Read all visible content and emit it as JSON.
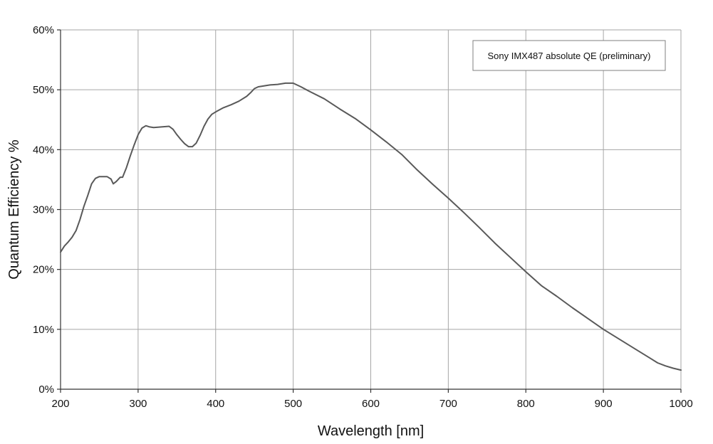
{
  "chart_data": {
    "type": "line",
    "title": "",
    "xlabel": "Wavelength [nm]",
    "ylabel": "Quantum Efficiency %",
    "xlim": [
      200,
      1000
    ],
    "ylim": [
      0,
      60
    ],
    "x_ticks": [
      200,
      300,
      400,
      500,
      600,
      700,
      800,
      900,
      1000
    ],
    "x_tick_labels": [
      "200",
      "300",
      "400",
      "500",
      "600",
      "700",
      "800",
      "900",
      "1000"
    ],
    "y_ticks": [
      0,
      10,
      20,
      30,
      40,
      50,
      60
    ],
    "y_tick_labels": [
      "0%",
      "10%",
      "20%",
      "30%",
      "40%",
      "50%",
      "60%"
    ],
    "grid": true,
    "legend": {
      "placement": "top-right",
      "boxed": true
    },
    "series": [
      {
        "name": "Sony IMX487 absolute QE (preliminary)",
        "color": "#595959",
        "points": [
          [
            200,
            22.9
          ],
          [
            205,
            23.9
          ],
          [
            210,
            24.6
          ],
          [
            215,
            25.4
          ],
          [
            220,
            26.5
          ],
          [
            225,
            28.3
          ],
          [
            230,
            30.5
          ],
          [
            235,
            32.3
          ],
          [
            240,
            34.3
          ],
          [
            245,
            35.2
          ],
          [
            250,
            35.5
          ],
          [
            255,
            35.5
          ],
          [
            260,
            35.5
          ],
          [
            265,
            35.1
          ],
          [
            268,
            34.3
          ],
          [
            272,
            34.7
          ],
          [
            277,
            35.4
          ],
          [
            280,
            35.4
          ],
          [
            285,
            37.0
          ],
          [
            290,
            39.0
          ],
          [
            295,
            40.8
          ],
          [
            300,
            42.5
          ],
          [
            305,
            43.6
          ],
          [
            310,
            44.0
          ],
          [
            315,
            43.8
          ],
          [
            320,
            43.7
          ],
          [
            330,
            43.8
          ],
          [
            340,
            43.9
          ],
          [
            345,
            43.4
          ],
          [
            350,
            42.5
          ],
          [
            355,
            41.7
          ],
          [
            360,
            41.0
          ],
          [
            365,
            40.5
          ],
          [
            370,
            40.5
          ],
          [
            375,
            41.1
          ],
          [
            380,
            42.4
          ],
          [
            385,
            43.9
          ],
          [
            390,
            45.1
          ],
          [
            395,
            45.9
          ],
          [
            400,
            46.3
          ],
          [
            410,
            47.0
          ],
          [
            420,
            47.5
          ],
          [
            430,
            48.1
          ],
          [
            440,
            48.9
          ],
          [
            445,
            49.5
          ],
          [
            450,
            50.2
          ],
          [
            455,
            50.5
          ],
          [
            460,
            50.6
          ],
          [
            470,
            50.8
          ],
          [
            480,
            50.9
          ],
          [
            490,
            51.1
          ],
          [
            500,
            51.1
          ],
          [
            510,
            50.5
          ],
          [
            520,
            49.8
          ],
          [
            540,
            48.5
          ],
          [
            560,
            46.8
          ],
          [
            580,
            45.2
          ],
          [
            600,
            43.3
          ],
          [
            620,
            41.3
          ],
          [
            640,
            39.2
          ],
          [
            660,
            36.6
          ],
          [
            680,
            34.2
          ],
          [
            700,
            31.9
          ],
          [
            720,
            29.5
          ],
          [
            740,
            27.0
          ],
          [
            760,
            24.4
          ],
          [
            780,
            22.0
          ],
          [
            800,
            19.6
          ],
          [
            820,
            17.3
          ],
          [
            840,
            15.5
          ],
          [
            860,
            13.6
          ],
          [
            880,
            11.8
          ],
          [
            900,
            10.0
          ],
          [
            920,
            8.4
          ],
          [
            940,
            6.8
          ],
          [
            960,
            5.2
          ],
          [
            970,
            4.4
          ],
          [
            980,
            3.9
          ],
          [
            990,
            3.5
          ],
          [
            1000,
            3.2
          ]
        ]
      }
    ]
  }
}
